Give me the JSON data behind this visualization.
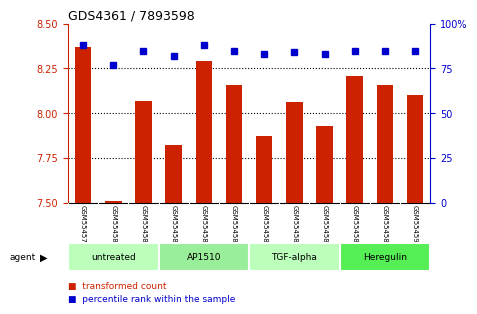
{
  "title": "GDS4361 / 7893598",
  "samples": [
    "GSM554579",
    "GSM554580",
    "GSM554581",
    "GSM554582",
    "GSM554583",
    "GSM554584",
    "GSM554585",
    "GSM554586",
    "GSM554587",
    "GSM554588",
    "GSM554589",
    "GSM554590"
  ],
  "red_values": [
    8.37,
    7.51,
    8.07,
    7.82,
    8.29,
    8.16,
    7.87,
    8.06,
    7.93,
    8.21,
    8.16,
    8.1
  ],
  "blue_values": [
    88,
    77,
    85,
    82,
    88,
    85,
    83,
    84,
    83,
    85,
    85,
    85
  ],
  "ylim_left": [
    7.5,
    8.5
  ],
  "ylim_right": [
    0,
    100
  ],
  "yticks_left": [
    7.5,
    7.75,
    8.0,
    8.25,
    8.5
  ],
  "yticks_right": [
    0,
    25,
    50,
    75,
    100
  ],
  "grid_lines": [
    7.75,
    8.0,
    8.25
  ],
  "groups": [
    {
      "label": "untreated",
      "start": 0,
      "end": 3,
      "color": "#bbffbb"
    },
    {
      "label": "AP1510",
      "start": 3,
      "end": 6,
      "color": "#99ee99"
    },
    {
      "label": "TGF-alpha",
      "start": 6,
      "end": 9,
      "color": "#bbffbb"
    },
    {
      "label": "Heregulin",
      "start": 9,
      "end": 12,
      "color": "#55ee55"
    }
  ],
  "agent_label": "agent",
  "bar_color": "#cc2200",
  "dot_color": "#0000cc",
  "tick_color_left": "#cc2200",
  "tick_color_right": "#0000cc",
  "legend": [
    {
      "label": "transformed count",
      "color": "#cc2200"
    },
    {
      "label": "percentile rank within the sample",
      "color": "#0000cc"
    }
  ],
  "bg_color": "#ffffff",
  "tick_area_bg": "#cccccc",
  "bar_width": 0.55
}
